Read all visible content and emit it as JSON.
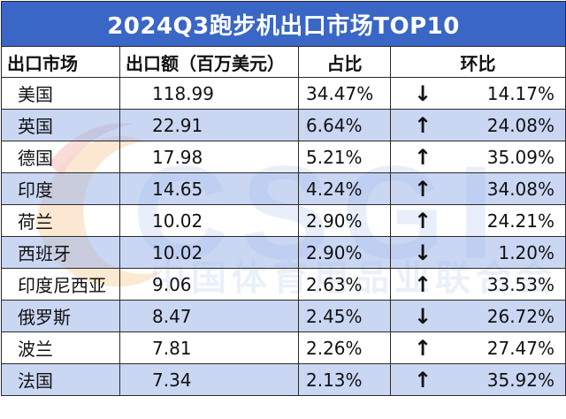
{
  "title": "2024Q3跑步机出口市场TOP10",
  "headers": {
    "market": "出口市场",
    "value": "出口额（百万美元）",
    "share": "占比",
    "change": "环比"
  },
  "rows": [
    {
      "market": "美国",
      "value": "118.99",
      "share": "34.47%",
      "arrow": "↓",
      "change": "14.17%"
    },
    {
      "market": "英国",
      "value": "22.91",
      "share": "6.64%",
      "arrow": "↑",
      "change": "24.08%"
    },
    {
      "market": "德国",
      "value": "17.98",
      "share": "5.21%",
      "arrow": "↑",
      "change": "35.09%"
    },
    {
      "market": "印度",
      "value": "14.65",
      "share": "4.24%",
      "arrow": "↑",
      "change": "34.08%"
    },
    {
      "market": "荷兰",
      "value": "10.02",
      "share": "2.90%",
      "arrow": "↑",
      "change": "24.21%"
    },
    {
      "market": "西班牙",
      "value": "10.02",
      "share": "2.90%",
      "arrow": "↓",
      "change": "1.20%"
    },
    {
      "market": "印度尼西亚",
      "value": "9.06",
      "share": "2.63%",
      "arrow": "↑",
      "change": "33.53%"
    },
    {
      "market": "俄罗斯",
      "value": "8.47",
      "share": "2.45%",
      "arrow": "↓",
      "change": "26.72%"
    },
    {
      "market": "波兰",
      "value": "7.81",
      "share": "2.26%",
      "arrow": "↑",
      "change": "27.47%"
    },
    {
      "market": "法国",
      "value": "7.34",
      "share": "2.13%",
      "arrow": "↑",
      "change": "35.92%"
    }
  ],
  "watermark": {
    "logo_text": "CSGI",
    "org_name": "中国体育用品业联合会"
  },
  "colors": {
    "title_bg": "#3a66c6",
    "title_text": "#ffffff",
    "row_alt_bg": "#bbccf0",
    "border": "#2a2a2a",
    "watermark_orange": "#f4a64a",
    "watermark_blue": "#8fb0e6"
  }
}
